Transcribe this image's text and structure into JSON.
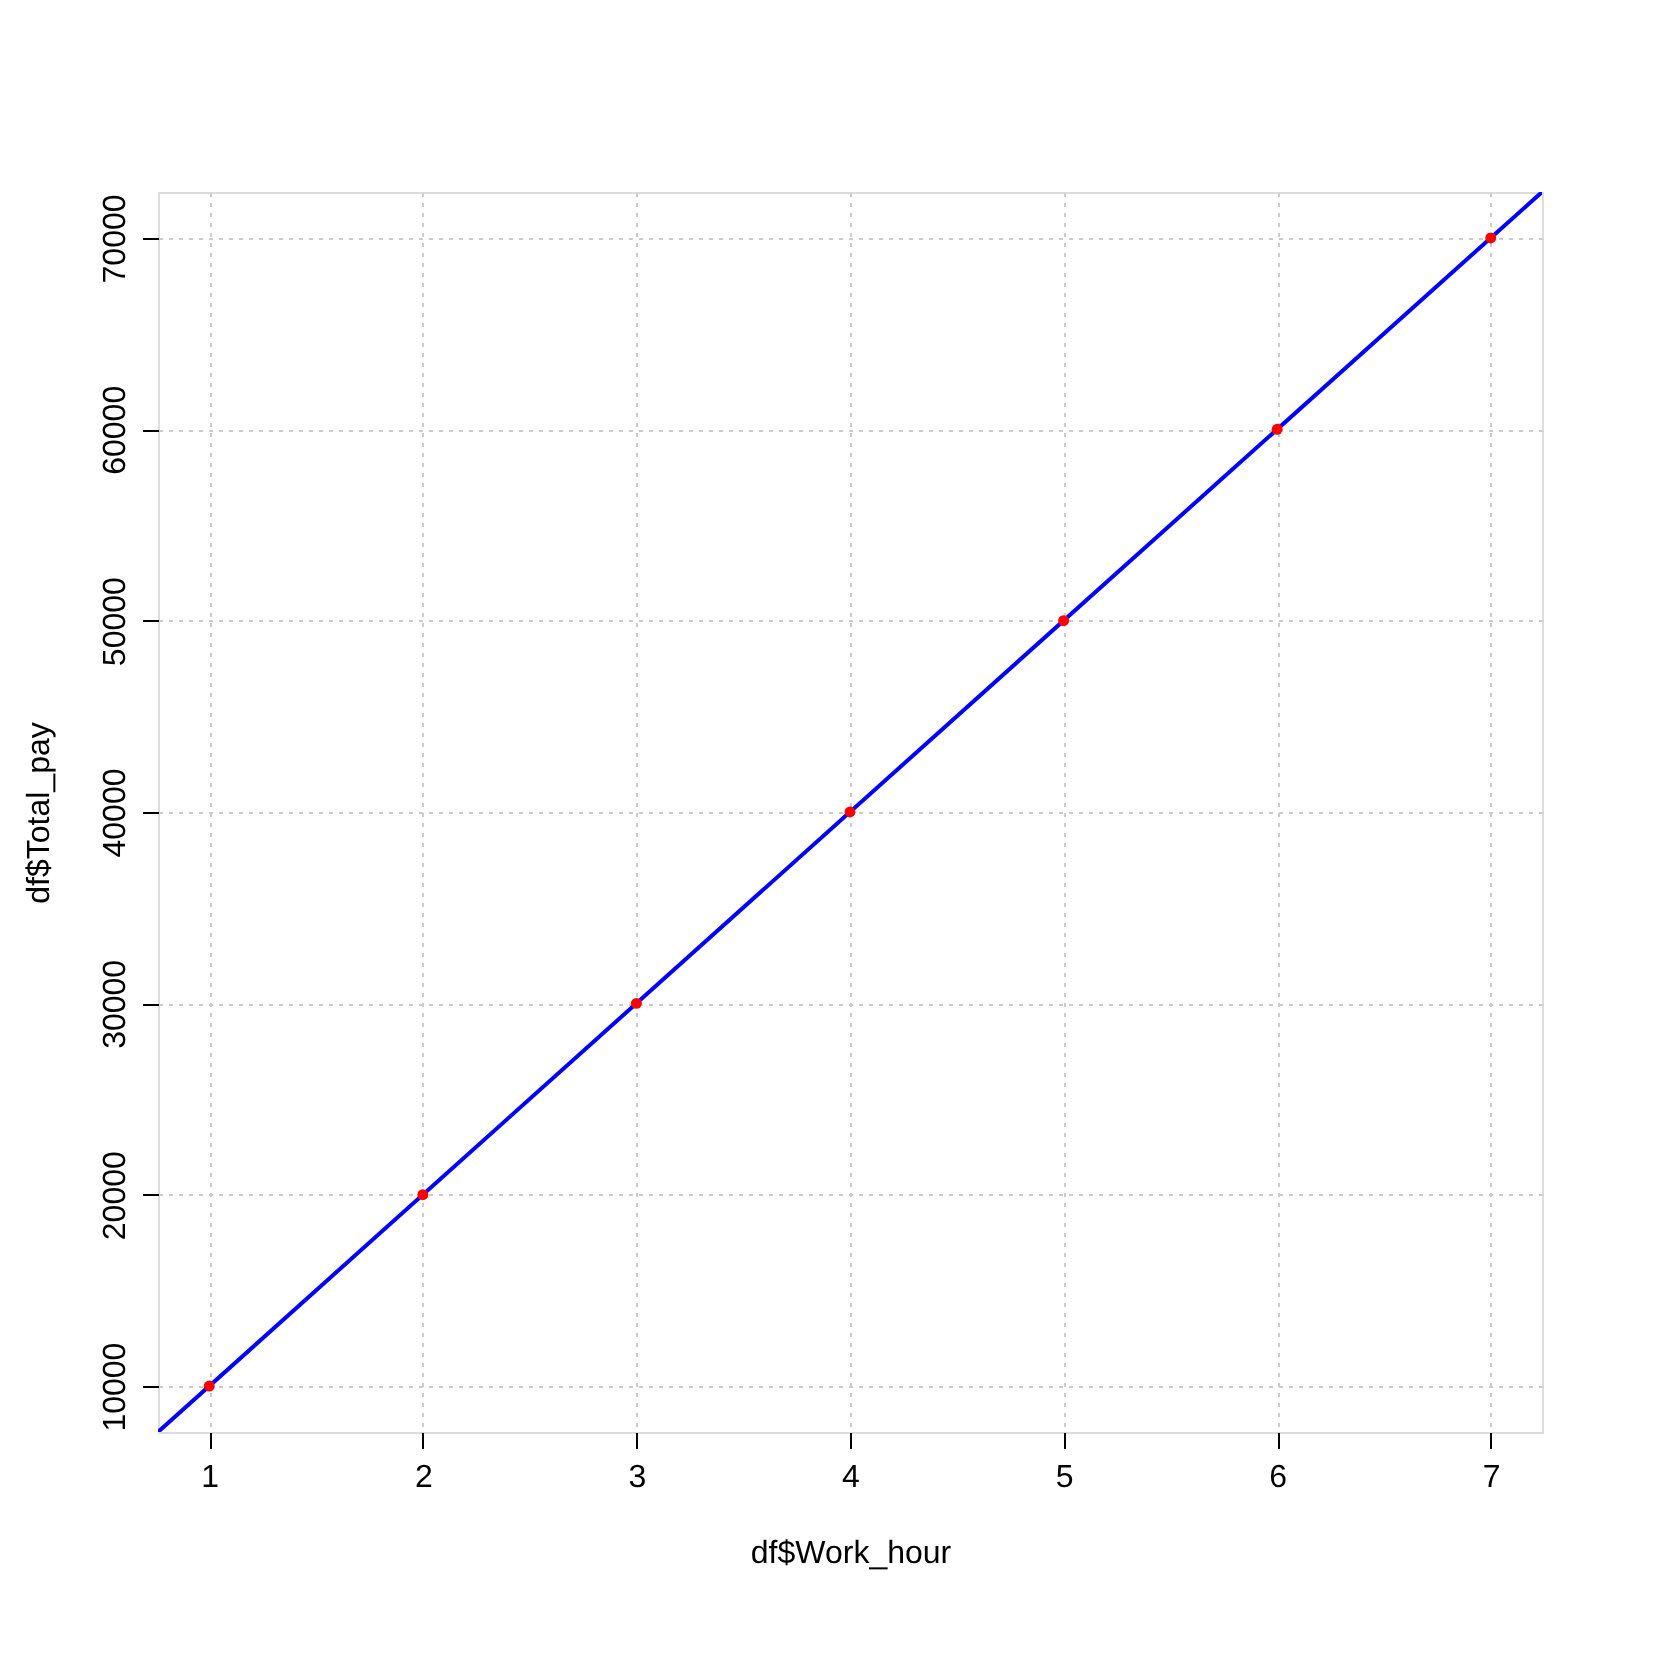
{
  "chart_data": {
    "type": "scatter",
    "xlabel": "df$Work_hour",
    "ylabel": "df$Total_pay",
    "xlim": [
      0.76,
      7.24
    ],
    "ylim": [
      7600,
      72400
    ],
    "xticks": [
      1,
      2,
      3,
      4,
      5,
      6,
      7
    ],
    "yticks": [
      10000,
      20000,
      30000,
      40000,
      50000,
      60000,
      70000
    ],
    "grid": true,
    "line_style": "solid",
    "series": [
      {
        "marker": "circle",
        "color": "#ff0000",
        "x": [
          1,
          2,
          3,
          4,
          5,
          6,
          7
        ],
        "values": [
          10000,
          20000,
          30000,
          40000,
          50000,
          60000,
          70000
        ]
      },
      {
        "type": "line",
        "marker": "none",
        "color": "#0000ff",
        "x": [
          0.76,
          7.24
        ],
        "values": [
          7600,
          72400
        ]
      }
    ]
  }
}
